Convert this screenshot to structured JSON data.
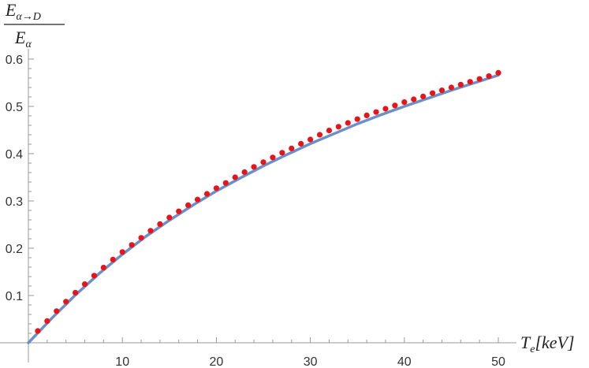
{
  "chart_data": {
    "type": "scatter",
    "xlim": [
      0,
      50
    ],
    "ylim": [
      0,
      0.6
    ],
    "x_ticks": [
      10,
      20,
      30,
      40,
      50
    ],
    "y_ticks": [
      0.1,
      0.2,
      0.3,
      0.4,
      0.5,
      0.6
    ],
    "x_tick_labels": [
      "10",
      "20",
      "30",
      "40",
      "50"
    ],
    "y_tick_labels": [
      "0.1",
      "0.2",
      "0.3",
      "0.4",
      "0.5",
      "0.6"
    ],
    "xlabel": {
      "main": "T",
      "sub": "e",
      "rest": "[keV]"
    },
    "ylabel": {
      "numerator_main": "E",
      "numerator_sub": "α→D",
      "denominator_main": "E",
      "denominator_sub": "α"
    },
    "grid": false,
    "colors": {
      "curve": "#6b8fc8",
      "points": "#e8141a",
      "axis": "#999999"
    },
    "series": [
      {
        "kind": "line",
        "x": [
          0,
          2.5,
          5,
          7.5,
          10,
          12.5,
          15,
          17.5,
          20,
          22.5,
          25,
          27.5,
          30,
          32.5,
          35,
          37.5,
          40,
          42.5,
          45,
          47.5,
          50
        ],
        "y": [
          0,
          0.052,
          0.101,
          0.146,
          0.187,
          0.225,
          0.259,
          0.291,
          0.321,
          0.348,
          0.374,
          0.398,
          0.421,
          0.442,
          0.463,
          0.482,
          0.5,
          0.517,
          0.534,
          0.55,
          0.566
        ]
      },
      {
        "kind": "scatter",
        "x": [
          1,
          2,
          3,
          4,
          5,
          6,
          7,
          8,
          9,
          10,
          11,
          12,
          13,
          14,
          15,
          16,
          17,
          18,
          19,
          20,
          21,
          22,
          23,
          24,
          25,
          26,
          27,
          28,
          29,
          30,
          31,
          32,
          33,
          34,
          35,
          36,
          37,
          38,
          39,
          40,
          41,
          42,
          43,
          44,
          45,
          46,
          47,
          48,
          49,
          50
        ],
        "y": [
          0.025,
          0.046,
          0.067,
          0.087,
          0.106,
          0.124,
          0.142,
          0.159,
          0.176,
          0.192,
          0.207,
          0.222,
          0.237,
          0.251,
          0.265,
          0.278,
          0.291,
          0.303,
          0.315,
          0.327,
          0.338,
          0.35,
          0.361,
          0.372,
          0.382,
          0.392,
          0.402,
          0.411,
          0.421,
          0.43,
          0.44,
          0.449,
          0.457,
          0.465,
          0.473,
          0.481,
          0.488,
          0.495,
          0.502,
          0.509,
          0.515,
          0.521,
          0.528,
          0.534,
          0.54,
          0.546,
          0.552,
          0.558,
          0.564,
          0.571
        ]
      }
    ]
  }
}
